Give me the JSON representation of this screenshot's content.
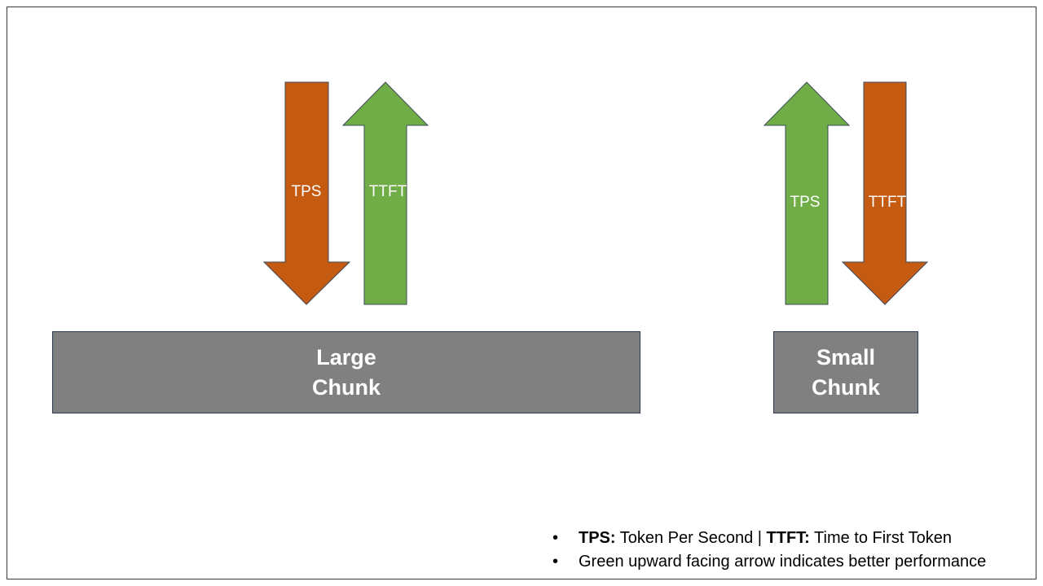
{
  "colors": {
    "down_arrow": "#c55a11",
    "up_arrow": "#70ad47",
    "chunk_fill": "#808080",
    "outline": "#2f3b55"
  },
  "large_group": {
    "chunk": {
      "line1": "Large",
      "line2": "Chunk"
    },
    "arrows": [
      {
        "label": "TPS",
        "direction": "down",
        "color": "orange"
      },
      {
        "label": "TTFT",
        "direction": "up",
        "color": "green"
      }
    ]
  },
  "small_group": {
    "chunk": {
      "line1": "Small",
      "line2": "Chunk"
    },
    "arrows": [
      {
        "label": "TPS",
        "direction": "up",
        "color": "green"
      },
      {
        "label": "TTFT",
        "direction": "down",
        "color": "orange"
      }
    ]
  },
  "notes": [
    {
      "bullet": "•",
      "term1": "TPS:",
      "text1": " Token Per Second | ",
      "term2": "TTFT:",
      "text2": " Time to First Token"
    },
    {
      "bullet": "•",
      "text": "Green upward facing arrow indicates better performance"
    }
  ]
}
